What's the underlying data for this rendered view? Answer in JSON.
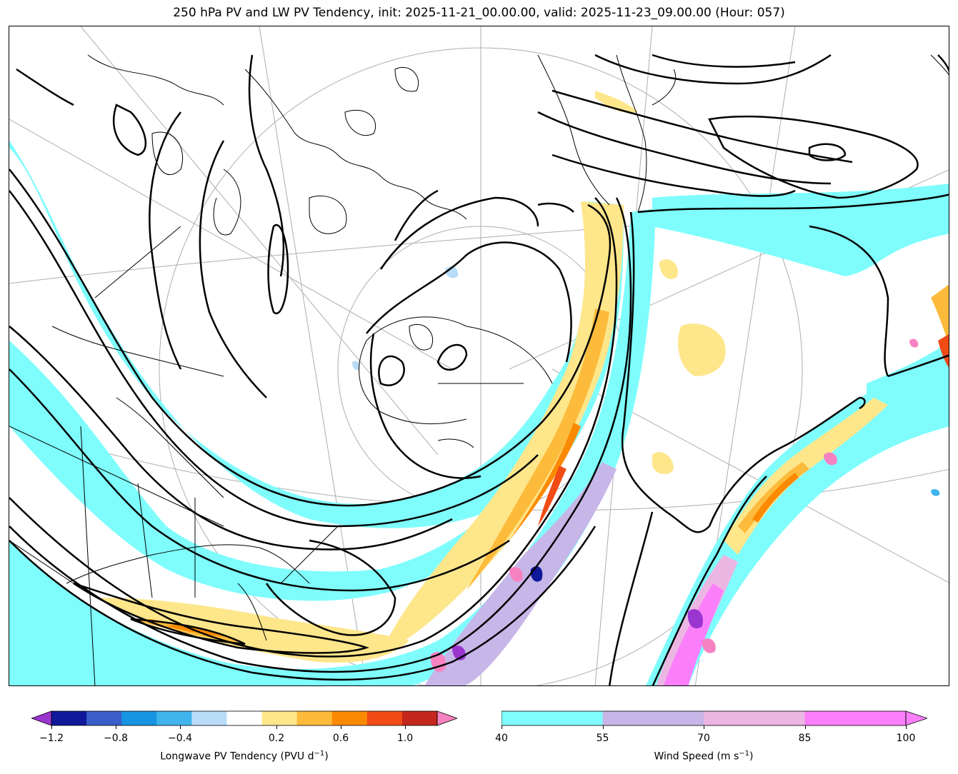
{
  "title": "250 hPa PV and LW PV Tendency, init: 2025-11-21_00.00.00, valid: 2025-11-23_09.00.00 (Hour: 057)",
  "colors": {
    "wind_fill": "#7ffdfd",
    "wind_55_70": "#c7b6e8",
    "wind_70_85": "#ecb6e2",
    "wind_85_100": "#fb7ffb",
    "tend_pos_low": "#fee68b",
    "tend_pos_mid": "#fdbb3c",
    "tend_pos_high": "#fc8a00",
    "tend_pos_top": "#f14b16",
    "tend_pos_max": "#c4271c",
    "tend_extend_max": "#f782c2",
    "tend_neg_low": "#b8dcf8",
    "tend_neg_mid": "#40b4ec",
    "tend_neg_high": "#1795e0",
    "tend_neg_top": "#3a5ec8",
    "tend_neg_max": "#10199a",
    "tend_extend_min": "#9b35d0",
    "contour": "#000000",
    "coast": "#000000",
    "grid": "#9a9a9a"
  },
  "legend_tendency": {
    "label": "Longwave PV Tendency (PVU d",
    "label_exp": "−1",
    "label_close": ")",
    "ticks": [
      "−1.2",
      "−0.8",
      "−0.4",
      "0.2",
      "0.6",
      "1.0"
    ],
    "tick_values": [
      -1.2,
      -0.8,
      -0.4,
      0.2,
      0.6,
      1.0
    ],
    "range": [
      -1.2,
      1.2
    ],
    "levels": [
      -1.2,
      -1.0,
      -0.8,
      -0.6,
      -0.4,
      -0.2,
      0.2,
      0.4,
      0.6,
      0.8,
      1.0,
      1.2
    ],
    "fill_colors": [
      "#10199a",
      "#3a5ec8",
      "#1795e0",
      "#40b4ec",
      "#b8dcf8",
      "#ffffff",
      "#fee68b",
      "#fdbb3c",
      "#fc8a00",
      "#f14b16",
      "#c4271c"
    ]
  },
  "legend_wind": {
    "label": "Wind Speed (m s",
    "label_exp": "−1",
    "label_close": ")",
    "ticks": [
      "40",
      "55",
      "70",
      "85",
      "100"
    ],
    "tick_values": [
      40,
      55,
      70,
      85,
      100
    ],
    "range": [
      40,
      100
    ],
    "fill_colors": [
      "#7ffdfd",
      "#c7b6e8",
      "#ecb6e2",
      "#fb7ffb"
    ]
  }
}
